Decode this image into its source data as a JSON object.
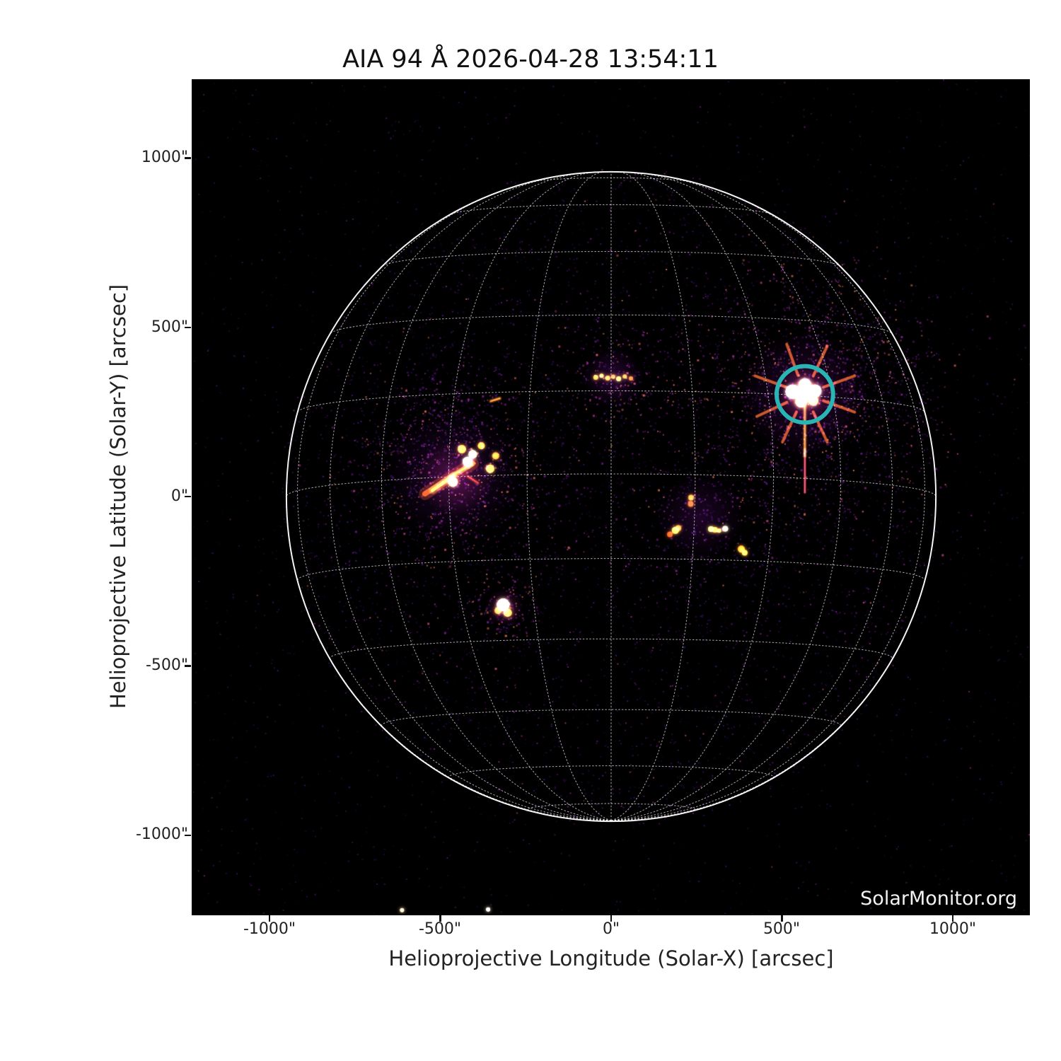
{
  "page": {
    "title": "AIA 94 Å 2026-04-28 13:54:11",
    "watermark": "SolarMonitor.org"
  },
  "chart_data": {
    "type": "heatmap",
    "title": "AIA 94 Å 2026-04-28 13:54:11",
    "xlabel": "Helioprojective Longitude (Solar-X) [arcsec]",
    "ylabel": "Helioprojective Latitude (Solar-Y) [arcsec]",
    "xlim": [
      -1228,
      1226
    ],
    "ylim": [
      -1237,
      1233
    ],
    "grid_on": true,
    "x_ticks": [
      {
        "value": -1000,
        "label": "-1000\""
      },
      {
        "value": -500,
        "label": "-500\""
      },
      {
        "value": 0,
        "label": "0\""
      },
      {
        "value": 500,
        "label": "500\""
      },
      {
        "value": 1000,
        "label": "1000\""
      }
    ],
    "y_ticks": [
      {
        "value": 1000,
        "label": "1000\""
      },
      {
        "value": 500,
        "label": "500\""
      },
      {
        "value": 0,
        "label": "0\""
      },
      {
        "value": -500,
        "label": "-500\""
      },
      {
        "value": -1000,
        "label": "-1000\""
      }
    ],
    "solar_grid": {
      "projection": "stonyhurst-orthographic",
      "spacing_deg": 15,
      "b0_deg": -4,
      "solar_radius_arcsec": 955,
      "line_color": "rgba(255,255,255,0.6)",
      "limb_color": "rgba(255,255,255,0.95)"
    },
    "flare_marker": {
      "x_arcsec": 567,
      "y_arcsec": 302,
      "radius_arcsec": 83,
      "color": "#2ab5b5",
      "stroke_width": 6
    },
    "active_regions": [
      {
        "name": "east-active-region-complex",
        "x_arcsec": -462,
        "y_arcsec": 60
      },
      {
        "name": "west-flaring-active-region",
        "x_arcsec": 567,
        "y_arcsec": 303
      },
      {
        "name": "small-south-active-region",
        "x_arcsec": -315,
        "y_arcsec": -326
      }
    ],
    "features": [
      {
        "kind": "glow",
        "x": -462,
        "y": 62,
        "r": 200,
        "color": "#4a0f66",
        "alpha": 0.4
      },
      {
        "kind": "glow",
        "x": -455,
        "y": 55,
        "r": 110,
        "color": "#8a1f56",
        "alpha": 0.45
      },
      {
        "kind": "streak",
        "x1": -545,
        "y1": 8,
        "x2": -405,
        "y2": 98,
        "w": 15,
        "color": "#e85c14",
        "alpha": 0.85
      },
      {
        "kind": "streak",
        "x1": -523,
        "y1": 18,
        "x2": -462,
        "y2": 62,
        "w": 9,
        "color": "#ffb33c",
        "alpha": 0.95
      },
      {
        "kind": "streak",
        "x1": -470,
        "y1": 60,
        "x2": -408,
        "y2": 95,
        "w": 6,
        "color": "#ff9028",
        "alpha": 0.9
      },
      {
        "kind": "streak",
        "x1": -420,
        "y1": 60,
        "x2": -390,
        "y2": 40,
        "w": 5,
        "color": "#c83c10",
        "alpha": 0.8
      },
      {
        "kind": "dot",
        "x": -420,
        "y": 103,
        "r": 7,
        "color": "#fff3c4"
      },
      {
        "kind": "dot",
        "x": -405,
        "y": 125,
        "r": 6,
        "color": "#ffe394"
      },
      {
        "kind": "dot",
        "x": -437,
        "y": 140,
        "r": 6,
        "color": "#ff9c34"
      },
      {
        "kind": "dot",
        "x": -380,
        "y": 150,
        "r": 5,
        "color": "#ff9c34"
      },
      {
        "kind": "dot",
        "x": -354,
        "y": 82,
        "r": 6,
        "color": "#ffac44"
      },
      {
        "kind": "dot",
        "x": -338,
        "y": 120,
        "r": 5,
        "color": "#ff8c2c"
      },
      {
        "kind": "dot",
        "x": -463,
        "y": 43,
        "r": 7,
        "color": "#ffd268"
      },
      {
        "kind": "streak",
        "x1": -352,
        "y1": 282,
        "x2": -326,
        "y2": 290,
        "w": 5,
        "color": "#ff8c30",
        "alpha": 0.9
      },
      {
        "kind": "glow",
        "x": 567,
        "y": 302,
        "r": 190,
        "color": "#5c1278",
        "alpha": 0.4
      },
      {
        "kind": "glow",
        "x": 567,
        "y": 302,
        "r": 85,
        "color": "#b03070",
        "alpha": 0.5
      },
      {
        "kind": "glow",
        "x": 567,
        "y": 303,
        "r": 52,
        "color": "#ff9830",
        "alpha": 0.85
      },
      {
        "kind": "glow",
        "x": 567,
        "y": 303,
        "r": 34,
        "color": "#ffe9a8",
        "alpha": 1
      },
      {
        "kind": "spoke",
        "x": 567,
        "y": 303,
        "angles": [
          20,
          65,
          115,
          155,
          200,
          250,
          295,
          340
        ],
        "r1": 28,
        "r2": 75,
        "w": 4,
        "color": "#ff7428",
        "alpha": 0.75
      },
      {
        "kind": "dot",
        "x": 531,
        "y": 310,
        "r": 10,
        "color": "#fff6cc"
      },
      {
        "kind": "dot",
        "x": 597,
        "y": 312,
        "r": 9,
        "color": "#fff6cc"
      },
      {
        "kind": "dot",
        "x": 567,
        "y": 330,
        "r": 9,
        "color": "#fff0b8"
      },
      {
        "kind": "dot",
        "x": 556,
        "y": 280,
        "r": 8,
        "color": "#ffdf8a"
      },
      {
        "kind": "dot",
        "x": 592,
        "y": 283,
        "r": 7,
        "color": "#ffc456"
      },
      {
        "kind": "streak",
        "x1": 567,
        "y1": 270,
        "x2": 567,
        "y2": 120,
        "w": 5,
        "color": "#ff8834",
        "alpha": 0.95
      },
      {
        "kind": "streak",
        "x1": 567,
        "y1": 140,
        "x2": 567,
        "y2": 12,
        "w": 4,
        "color": "#e8506a",
        "alpha": 0.9
      },
      {
        "kind": "glow",
        "x": -313,
        "y": -328,
        "r": 55,
        "color": "#8c2470",
        "alpha": 0.5
      },
      {
        "kind": "dot",
        "x": -316,
        "y": -320,
        "r": 9,
        "color": "#fff0b0"
      },
      {
        "kind": "dot",
        "x": -303,
        "y": -343,
        "r": 6,
        "color": "#ff9838"
      },
      {
        "kind": "dot",
        "x": -331,
        "y": -337,
        "r": 5,
        "color": "#ff8830"
      },
      {
        "kind": "glow",
        "x": 5,
        "y": 352,
        "r": 90,
        "color": "#571070",
        "alpha": 0.45
      },
      {
        "kind": "dot",
        "x": -45,
        "y": 352,
        "r": 3.5,
        "color": "#ff9838"
      },
      {
        "kind": "dot",
        "x": -28,
        "y": 357,
        "r": 3,
        "color": "#ffc050"
      },
      {
        "kind": "dot",
        "x": -10,
        "y": 350,
        "r": 3.5,
        "color": "#ff9838"
      },
      {
        "kind": "dot",
        "x": 6,
        "y": 354,
        "r": 3,
        "color": "#ff8830"
      },
      {
        "kind": "dot",
        "x": 22,
        "y": 348,
        "r": 3.5,
        "color": "#ffc050"
      },
      {
        "kind": "dot",
        "x": 40,
        "y": 355,
        "r": 3,
        "color": "#ff9838"
      },
      {
        "kind": "dot",
        "x": 58,
        "y": 349,
        "r": 3,
        "color": "#e87030"
      },
      {
        "kind": "glow",
        "x": 260,
        "y": -60,
        "r": 130,
        "color": "#4a0e60",
        "alpha": 0.4
      },
      {
        "kind": "dot",
        "x": 188,
        "y": -100,
        "r": 5,
        "color": "#ffb040"
      },
      {
        "kind": "dot",
        "x": 197,
        "y": -93,
        "r": 4,
        "color": "#ff8030"
      },
      {
        "kind": "dot",
        "x": 292,
        "y": -96,
        "r": 4,
        "color": "#ffd060"
      },
      {
        "kind": "dot",
        "x": 304,
        "y": -98,
        "r": 4,
        "color": "#ff9030"
      },
      {
        "kind": "dot",
        "x": 316,
        "y": -101,
        "r": 3,
        "color": "#ffc050"
      },
      {
        "kind": "dot",
        "x": 334,
        "y": -95,
        "r": 4,
        "color": "#fff0a0"
      },
      {
        "kind": "dot",
        "x": 381,
        "y": -155,
        "r": 5,
        "color": "#ff8828"
      },
      {
        "kind": "dot",
        "x": 391,
        "y": -166,
        "r": 4,
        "color": "#ffb848"
      },
      {
        "kind": "dot",
        "x": 234,
        "y": -3,
        "r": 4,
        "color": "#ff8830"
      },
      {
        "kind": "dot",
        "x": 233,
        "y": -22,
        "r": 4,
        "color": "#e85c20"
      },
      {
        "kind": "dot",
        "x": 172,
        "y": -112,
        "r": 4,
        "color": "#c04818"
      },
      {
        "kind": "dot",
        "x": -612,
        "y": -1222,
        "r": 3,
        "color": "#ffd0a0"
      },
      {
        "kind": "dot",
        "x": -360,
        "y": -1220,
        "r": 3,
        "color": "#fff0d0"
      }
    ],
    "noise_clusters": [
      {
        "x": 567,
        "y": 302,
        "n": 1000,
        "sigma": 95,
        "palette": "bright"
      },
      {
        "x": -462,
        "y": 60,
        "n": 800,
        "sigma": 75,
        "palette": "bright"
      },
      {
        "x": -313,
        "y": -328,
        "n": 160,
        "sigma": 28,
        "palette": "bright"
      },
      {
        "x": 5,
        "y": 352,
        "n": 260,
        "sigma": 48,
        "palette": "bright"
      },
      {
        "x": 260,
        "y": -70,
        "n": 350,
        "sigma": 75,
        "palette": "mid"
      },
      {
        "x": -460,
        "y": 200,
        "n": 250,
        "sigma": 60,
        "palette": "mid"
      },
      {
        "x": 700,
        "y": 380,
        "n": 200,
        "sigma": 70,
        "palette": "mid"
      }
    ],
    "spoke_fans": [
      {
        "x": 567,
        "y": 302,
        "angles": [
          12,
          40,
          68,
          95,
          122,
          150,
          178,
          205,
          232,
          260,
          288,
          315,
          342
        ],
        "n": 24,
        "r1": 48,
        "r2": 200,
        "jitter": 5
      },
      {
        "x": -462,
        "y": 60,
        "angles": [
          25,
          70,
          115,
          160,
          205,
          250,
          295,
          340
        ],
        "n": 14,
        "r1": 40,
        "r2": 130,
        "jitter": 6
      }
    ]
  }
}
